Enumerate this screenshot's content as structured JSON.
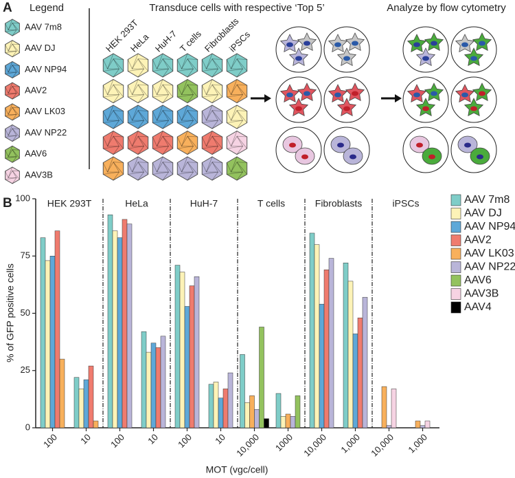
{
  "diagram": {
    "label": "A",
    "legend_title": "Legend",
    "legend": [
      {
        "name": "AAV 7m8",
        "color": "#7fcdc8"
      },
      {
        "name": "AAV DJ",
        "color": "#fdf3b7"
      },
      {
        "name": "AAV NP94",
        "color": "#5ea8d8"
      },
      {
        "name": "AAV2",
        "color": "#ef7b6e"
      },
      {
        "name": "AAV LK03",
        "color": "#f8b05c"
      },
      {
        "name": "AAV NP22",
        "color": "#b9b5d9"
      },
      {
        "name": "AAV6",
        "color": "#93c25e"
      },
      {
        "name": "AAV3B",
        "color": "#f6d3e3"
      }
    ],
    "steps": [
      "Transduce cells with respective ‘Top 5’",
      "Analyze by flow cytometry"
    ],
    "cell_types": [
      "HEK 293T",
      "HeLa",
      "HuH-7",
      "T cells",
      "Fibroblasts",
      "iPSCs"
    ],
    "grid": [
      [
        "#7fcdc8",
        "#fdf3b7",
        "#7fcdc8",
        "#7fcdc8",
        "#7fcdc8",
        "#7fcdc8"
      ],
      [
        "#fdf3b7",
        "#fdf3b7",
        "#fdf3b7",
        "#93c25e",
        "#fdf3b7",
        "#f8b05c"
      ],
      [
        "#5ea8d8",
        "#5ea8d8",
        "#5ea8d8",
        "#5ea8d8",
        "#b9b5d9",
        "#fdf3b7"
      ],
      [
        "#ef7b6e",
        "#ef7b6e",
        "#ef7b6e",
        "#f8b05c",
        "#ef7b6e",
        "#f6d3e3"
      ],
      [
        "#f8b05c",
        "#b9b5d9",
        "#b9b5d9",
        "#b9b5d9",
        "#b9b5d9",
        "#93c25e"
      ]
    ]
  },
  "chart_data": {
    "type": "bar",
    "label": "B",
    "y_label": "% of GFP positive cells",
    "x_label": "MOT (vgc/cell)",
    "group_labels": [
      "HEK 293T",
      "HeLa",
      "HuH-7",
      "T cells",
      "Fibroblasts",
      "iPSCs"
    ],
    "categories": [
      "100",
      "10",
      "100",
      "10",
      "100",
      "10",
      "10,000",
      "1000",
      "10,000",
      "1,000",
      "10,000",
      "1,000"
    ],
    "ylim": [
      0,
      100
    ],
    "yticks": [
      0,
      25,
      50,
      75,
      100
    ],
    "series": [
      {
        "name": "AAV 7m8",
        "color": "#7fcdc8",
        "values": [
          83,
          22,
          93,
          42,
          71,
          19,
          32,
          15,
          85,
          72,
          null,
          null
        ]
      },
      {
        "name": "AAV DJ",
        "color": "#fdf3b7",
        "values": [
          73,
          17,
          86,
          33,
          68,
          20,
          11,
          5,
          80,
          64,
          null,
          null
        ]
      },
      {
        "name": "AAV NP94",
        "color": "#5ea8d8",
        "values": [
          75,
          21,
          83,
          37,
          53,
          13,
          null,
          null,
          54,
          41,
          null,
          null
        ]
      },
      {
        "name": "AAV2",
        "color": "#ef7b6e",
        "values": [
          86,
          27,
          91,
          35,
          62,
          17,
          null,
          null,
          69,
          48,
          null,
          null
        ]
      },
      {
        "name": "AAV LK03",
        "color": "#f8b05c",
        "values": [
          30,
          3,
          null,
          null,
          null,
          null,
          14,
          6,
          null,
          null,
          18,
          3
        ]
      },
      {
        "name": "AAV NP22",
        "color": "#b9b5d9",
        "values": [
          null,
          null,
          89,
          40,
          66,
          24,
          8,
          5,
          74,
          57,
          1,
          1
        ]
      },
      {
        "name": "AAV6",
        "color": "#93c25e",
        "values": [
          null,
          null,
          null,
          null,
          null,
          null,
          44,
          14,
          null,
          null,
          null,
          null
        ]
      },
      {
        "name": "AAV3B",
        "color": "#f6d3e3",
        "values": [
          null,
          null,
          null,
          null,
          null,
          null,
          null,
          null,
          null,
          null,
          17,
          3
        ]
      },
      {
        "name": "AAV4",
        "color": "#000000",
        "values": [
          null,
          null,
          null,
          null,
          null,
          null,
          4,
          null,
          null,
          null,
          null,
          null
        ]
      }
    ]
  }
}
